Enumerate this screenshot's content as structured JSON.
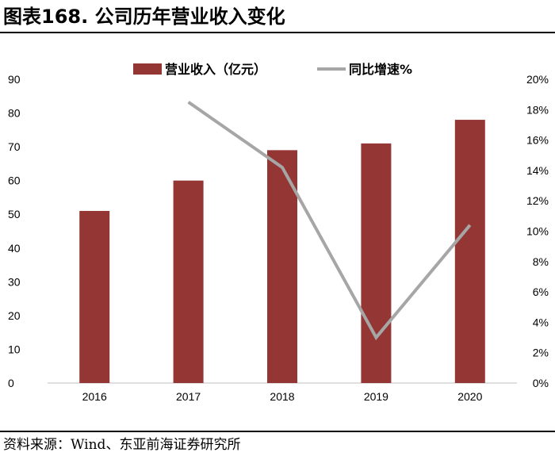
{
  "figure": {
    "title": "图表168. 公司历年营业收入变化",
    "source": "资料来源：Wind、东亚前海证券研究所"
  },
  "colors": {
    "bar": "#943634",
    "line": "#A6A6A6",
    "axis": "#BFBFBF"
  },
  "chart_data": {
    "type": "bar",
    "categories": [
      "2016",
      "2017",
      "2018",
      "2019",
      "2020"
    ],
    "series": [
      {
        "name": "营业收入（亿元）",
        "type": "bar",
        "axis": "left",
        "values": [
          51,
          60,
          69,
          71,
          78
        ]
      },
      {
        "name": "同比增速%",
        "type": "line",
        "axis": "right",
        "values": [
          null,
          18.5,
          14.2,
          3.0,
          10.4
        ]
      }
    ],
    "y_left": {
      "min": 0,
      "max": 90,
      "step": 10,
      "ticks": [
        "0",
        "10",
        "20",
        "30",
        "40",
        "50",
        "60",
        "70",
        "80",
        "90"
      ]
    },
    "y_right": {
      "min": 0,
      "max": 20,
      "step": 2,
      "ticks": [
        "0%",
        "2%",
        "4%",
        "6%",
        "8%",
        "10%",
        "12%",
        "14%",
        "16%",
        "18%",
        "20%"
      ]
    },
    "legend_position": "top-center",
    "grid": false
  }
}
